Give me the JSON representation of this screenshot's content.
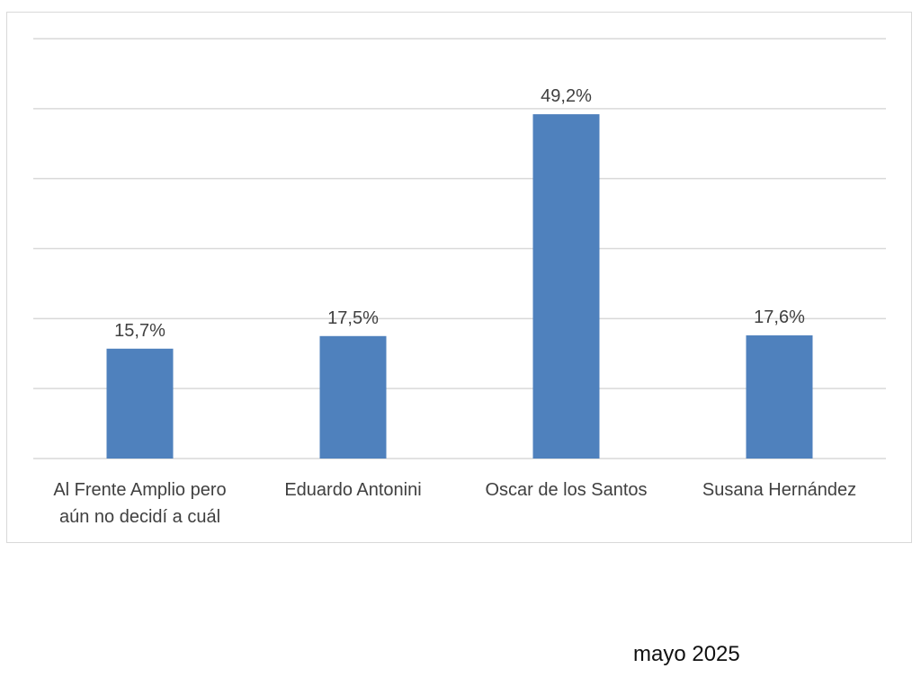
{
  "chart_data": {
    "type": "bar",
    "title": "",
    "xlabel": "",
    "ylabel": "",
    "categories": [
      [
        "Al Frente Amplio pero",
        "aún no decidí a cuál"
      ],
      [
        "Eduardo Antonini"
      ],
      [
        "Oscar de los Santos"
      ],
      [
        "Susana Hernández"
      ]
    ],
    "values": [
      15.7,
      17.5,
      49.2,
      17.6
    ],
    "data_labels": [
      "15,7%",
      "17,5%",
      "49,2%",
      "17,6%"
    ],
    "ylim": [
      0,
      60
    ],
    "grid_step": 10,
    "grid": true,
    "legend": "none",
    "bar_color": "#4f81bd"
  },
  "footer": "mayo 2025"
}
